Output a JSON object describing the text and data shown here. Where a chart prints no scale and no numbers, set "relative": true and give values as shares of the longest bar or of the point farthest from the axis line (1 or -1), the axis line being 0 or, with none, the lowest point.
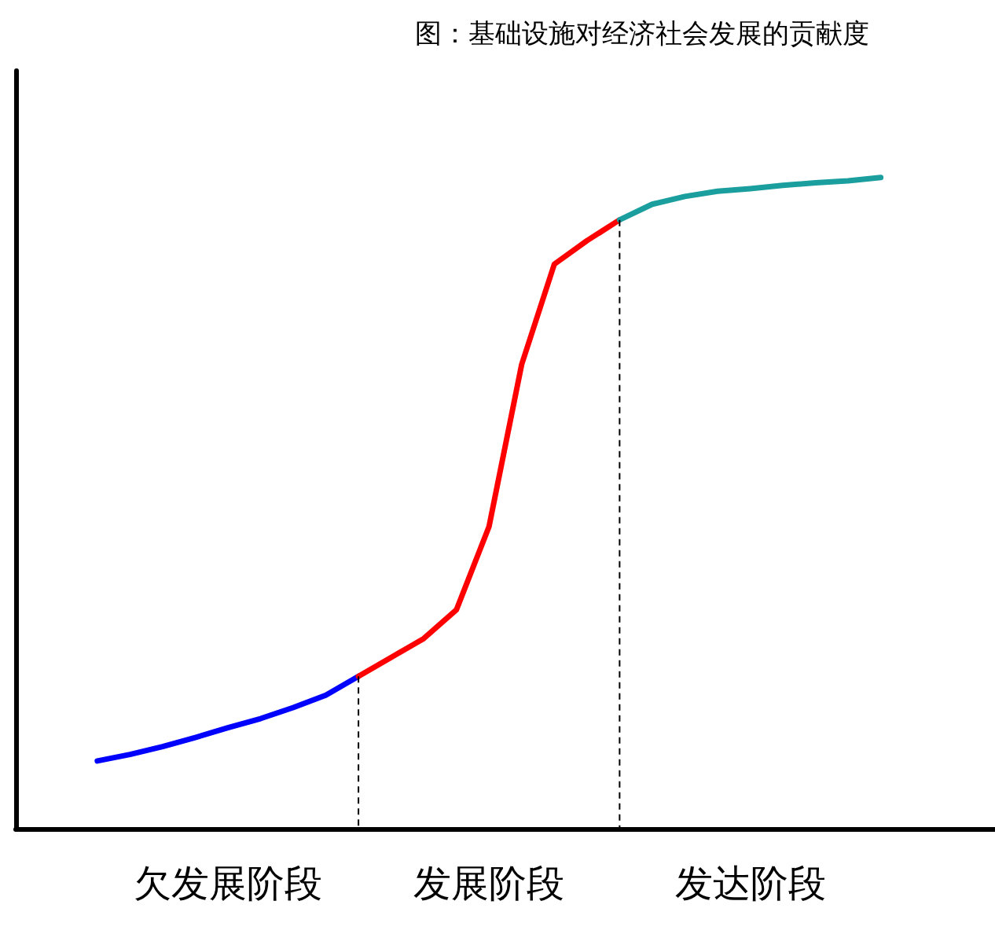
{
  "chart_data": {
    "type": "line",
    "title": "图：基础设施对经济社会发展的贡献度",
    "relative": true,
    "marker": "none",
    "line_style": "solid",
    "categories": [
      null,
      null,
      null,
      null,
      null,
      null,
      null,
      null,
      null,
      null,
      null,
      null,
      null,
      null,
      null,
      null,
      null,
      null,
      null,
      null,
      null,
      null,
      null,
      null,
      null,
      null,
      null,
      null,
      null,
      null
    ],
    "series": [
      {
        "color": "#0000ff",
        "values": [
          null,
          null,
          0.104,
          0.114,
          0.126,
          0.14,
          0.155,
          0.169,
          0.186,
          0.205,
          0.234,
          null,
          null,
          null,
          null,
          null,
          null,
          null,
          null,
          null,
          null,
          null,
          null,
          null,
          null,
          null,
          null,
          null,
          null,
          null
        ]
      },
      {
        "color": "#ff0000",
        "values": [
          null,
          null,
          null,
          null,
          null,
          null,
          null,
          null,
          null,
          null,
          0.234,
          0.263,
          0.292,
          0.336,
          0.464,
          0.713,
          0.867,
          0.903,
          0.935,
          null,
          null,
          null,
          null,
          null,
          null,
          null,
          null,
          null,
          null,
          null
        ]
      },
      {
        "color": "#1a9e9e",
        "values": [
          null,
          null,
          null,
          null,
          null,
          null,
          null,
          null,
          null,
          null,
          null,
          null,
          null,
          null,
          null,
          null,
          null,
          null,
          0.935,
          0.959,
          0.971,
          0.979,
          0.983,
          0.988,
          0.992,
          0.995,
          1,
          null,
          null,
          null
        ]
      }
    ],
    "annotations": [
      "欠发展阶段",
      "发展阶段",
      "发达阶段"
    ]
  }
}
